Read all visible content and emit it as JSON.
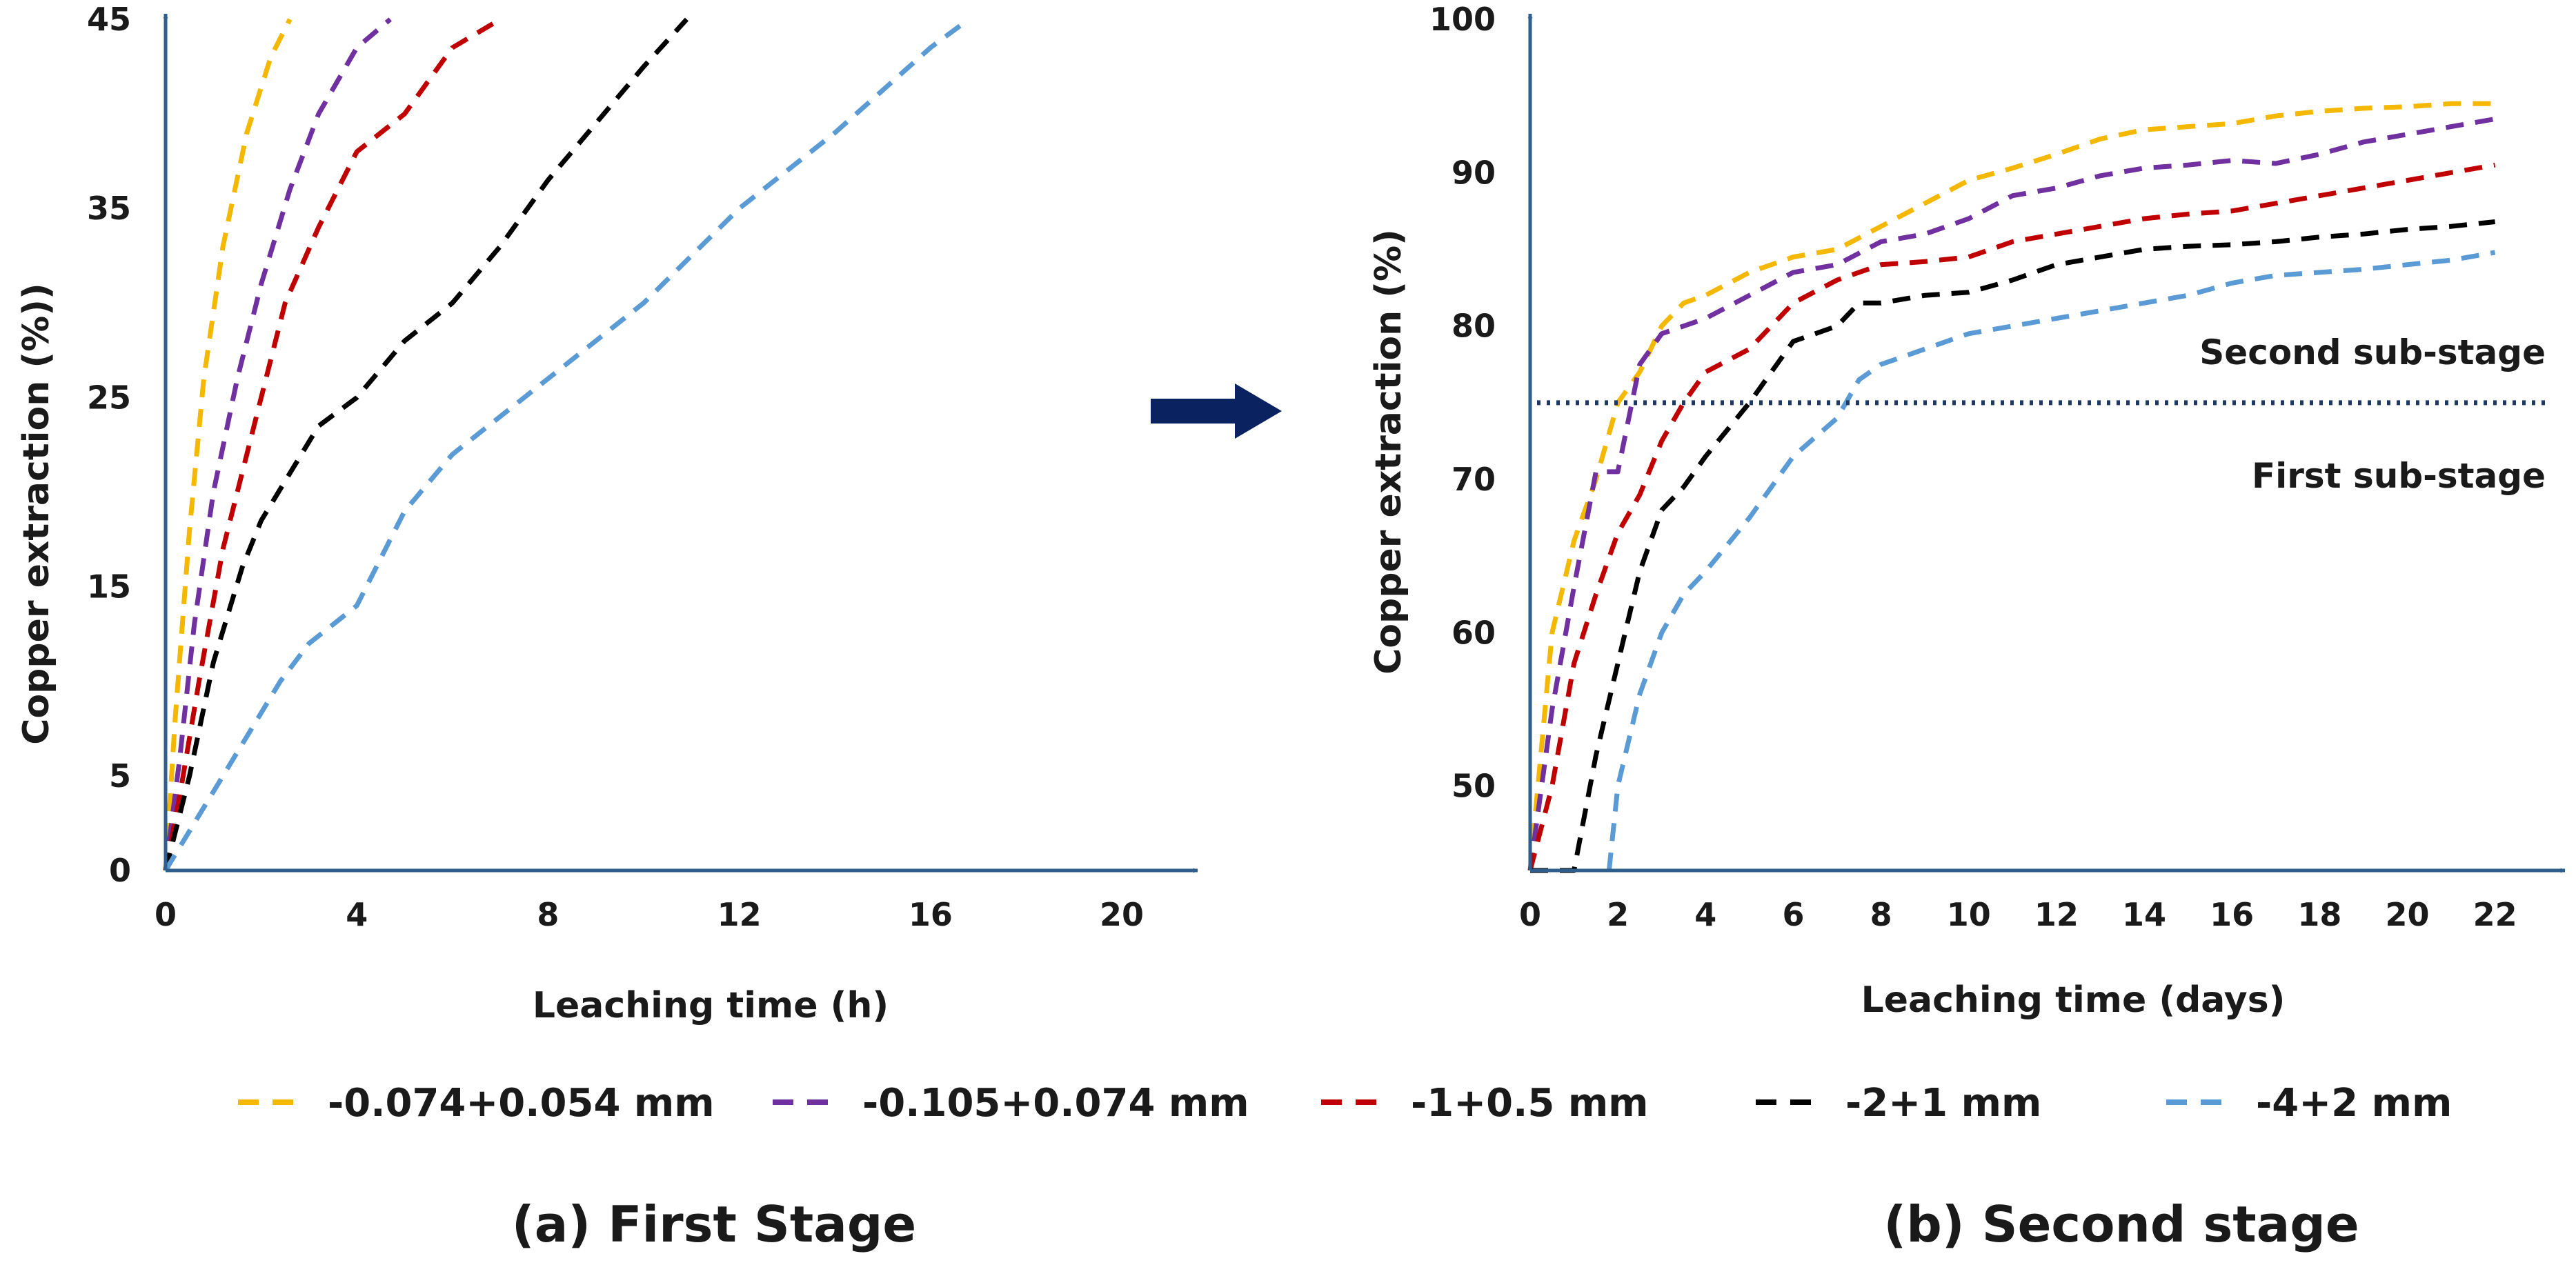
{
  "legend": [
    {
      "label": "-0.074+0.054 mm",
      "color": "#F5B800"
    },
    {
      "label": "-0.105+0.074 mm",
      "color": "#7030A0"
    },
    {
      "label": "-1+0.5 mm",
      "color": "#C00000"
    },
    {
      "label": "-2+1 mm",
      "color": "#000000"
    },
    {
      "label": "-4+2 mm",
      "color": "#5B9BD5"
    }
  ],
  "arrow_color": "#0B2260",
  "axis_color": "#2E5E8C",
  "chart_data": [
    {
      "type": "line",
      "caption": "(a) First Stage",
      "xlabel": "Leaching time (h)",
      "ylabel": "Copper extraction (%))",
      "xlim": [
        0,
        21.5
      ],
      "ylim": [
        0,
        45
      ],
      "xticks": [
        0,
        4,
        8,
        12,
        16,
        20
      ],
      "yticks": [
        0,
        5,
        15,
        25,
        35,
        45
      ],
      "line_style": "dashed",
      "series": [
        {
          "name": "-0.074+0.054 mm",
          "color": "#F5B800",
          "x": [
            0,
            0.2,
            0.5,
            0.8,
            1.2,
            1.7,
            2.2,
            2.6
          ],
          "y": [
            0,
            8,
            18,
            26,
            33,
            39,
            43,
            45
          ]
        },
        {
          "name": "-0.105+0.074 mm",
          "color": "#7030A0",
          "x": [
            0,
            0.3,
            0.6,
            1.0,
            1.5,
            2.0,
            2.6,
            3.2,
            4.0,
            4.7
          ],
          "y": [
            0,
            6,
            13,
            20,
            26,
            31,
            36,
            40,
            43.5,
            45
          ]
        },
        {
          "name": "-1+0.5 mm",
          "color": "#C00000",
          "x": [
            0,
            0.3,
            0.7,
            1.2,
            1.8,
            2.5,
            3.2,
            4.0,
            5.0,
            6.0,
            7.0
          ],
          "y": [
            0,
            4,
            10,
            17,
            23,
            30,
            34,
            38,
            40,
            43.5,
            45
          ]
        },
        {
          "name": "-2+1 mm",
          "color": "#000000",
          "x": [
            0,
            0.5,
            1.0,
            1.6,
            2.0,
            2.6,
            3.2,
            4.0,
            5.0,
            6.0,
            7.0,
            8.0,
            9.0,
            10.0,
            10.9
          ],
          "y": [
            0,
            5,
            11,
            16,
            18.5,
            21,
            23.5,
            25,
            28,
            30,
            33,
            36.5,
            39.5,
            42.5,
            45
          ]
        },
        {
          "name": "-4+2 mm",
          "color": "#5B9BD5",
          "x": [
            0,
            1.2,
            2.4,
            3.0,
            4.0,
            5.0,
            6.0,
            8.0,
            10.0,
            12.0,
            14.0,
            16.0,
            16.8
          ],
          "y": [
            0,
            5,
            10,
            12,
            14,
            19,
            22,
            26,
            30,
            35,
            39,
            43.5,
            45
          ]
        }
      ]
    },
    {
      "type": "line",
      "caption": "(b) Second stage",
      "xlabel": "Leaching time (days)",
      "ylabel": "Copper extraction (%)",
      "xlim": [
        0,
        23.5
      ],
      "ylim": [
        44.5,
        100
      ],
      "xticks": [
        0,
        2,
        4,
        6,
        8,
        10,
        12,
        14,
        16,
        18,
        20,
        22
      ],
      "yticks": [
        50,
        60,
        70,
        80,
        90,
        100
      ],
      "line_style": "dashed",
      "threshold": {
        "y": 75,
        "label_above": "Second sub-stage",
        "label_below": "First sub-stage"
      },
      "series": [
        {
          "name": "-0.074+0.054 mm",
          "color": "#F5B800",
          "x": [
            0,
            0.5,
            1.0,
            1.5,
            2.0,
            2.5,
            3.0,
            3.5,
            4.0,
            5.0,
            6.0,
            7.0,
            8.0,
            9.0,
            10.0,
            11.0,
            12.0,
            13.0,
            14.0,
            15.0,
            16.0,
            17.0,
            18.0,
            19.0,
            20.0,
            21.0,
            22.0
          ],
          "y": [
            44.5,
            60,
            66,
            70,
            75,
            77,
            80,
            81.5,
            82,
            83.5,
            84.5,
            85,
            86.5,
            88,
            89.5,
            90.3,
            91.2,
            92.2,
            92.8,
            93,
            93.2,
            93.7,
            94,
            94.2,
            94.3,
            94.5,
            94.5
          ]
        },
        {
          "name": "-0.105+0.074 mm",
          "color": "#7030A0",
          "x": [
            0,
            0.5,
            1.0,
            1.5,
            2.0,
            2.5,
            3.0,
            4.0,
            5.0,
            6.0,
            7.0,
            8.0,
            9.0,
            10.0,
            11.0,
            12.0,
            13.0,
            14.0,
            15.0,
            16.0,
            17.0,
            18.0,
            19.0,
            20.0,
            21.0,
            22.0
          ],
          "y": [
            44.5,
            55,
            63,
            70.5,
            70.5,
            77.5,
            79.5,
            80.5,
            82,
            83.5,
            84,
            85.5,
            86,
            87,
            88.5,
            89,
            89.8,
            90.3,
            90.5,
            90.8,
            90.6,
            91.2,
            92,
            92.5,
            93,
            93.5
          ]
        },
        {
          "name": "-1+0.5 mm",
          "color": "#C00000",
          "x": [
            0,
            0.5,
            1.0,
            1.5,
            2.0,
            2.5,
            3.0,
            3.5,
            4.0,
            5.0,
            6.0,
            7.0,
            8.0,
            9.0,
            10.0,
            11.0,
            12.0,
            13.0,
            14.0,
            15.0,
            16.0,
            17.0,
            18.0,
            19.0,
            20.0,
            21.0,
            22.0
          ],
          "y": [
            44.5,
            50,
            58,
            62.5,
            66.5,
            69,
            72.5,
            75,
            77,
            78.5,
            81.5,
            83,
            84,
            84.2,
            84.5,
            85.5,
            86,
            86.5,
            87,
            87.3,
            87.5,
            88,
            88.5,
            89,
            89.5,
            90,
            90.5
          ]
        },
        {
          "name": "-2+1 mm",
          "color": "#000000",
          "x": [
            0,
            1.0,
            1.5,
            2.0,
            2.5,
            3.0,
            3.5,
            4.0,
            5.0,
            6.0,
            7.0,
            7.5,
            8.0,
            9.0,
            10.0,
            11.0,
            12.0,
            13.0,
            14.0,
            15.0,
            16.0,
            17.0,
            18.0,
            19.0,
            20.0,
            21.0,
            22.0
          ],
          "y": [
            44.5,
            44.5,
            52,
            58,
            64,
            68,
            69.5,
            71.5,
            75,
            79,
            80,
            81.5,
            81.5,
            82,
            82.2,
            83,
            84,
            84.5,
            85,
            85.2,
            85.3,
            85.5,
            85.8,
            86,
            86.3,
            86.5,
            86.8
          ]
        },
        {
          "name": "-4+2 mm",
          "color": "#5B9BD5",
          "x": [
            1.8,
            2.0,
            2.5,
            3.0,
            3.5,
            4.0,
            5.0,
            6.0,
            7.0,
            7.5,
            8.0,
            9.0,
            10.0,
            11.0,
            12.0,
            13.0,
            14.0,
            15.0,
            16.0,
            17.0,
            18.0,
            19.0,
            20.0,
            21.0,
            22.0
          ],
          "y": [
            44.5,
            50,
            56,
            60,
            62.5,
            64,
            67.5,
            71.5,
            74,
            76.5,
            77.5,
            78.5,
            79.5,
            80,
            80.5,
            81,
            81.5,
            82,
            82.8,
            83.3,
            83.5,
            83.7,
            84,
            84.3,
            84.8
          ]
        }
      ]
    }
  ]
}
